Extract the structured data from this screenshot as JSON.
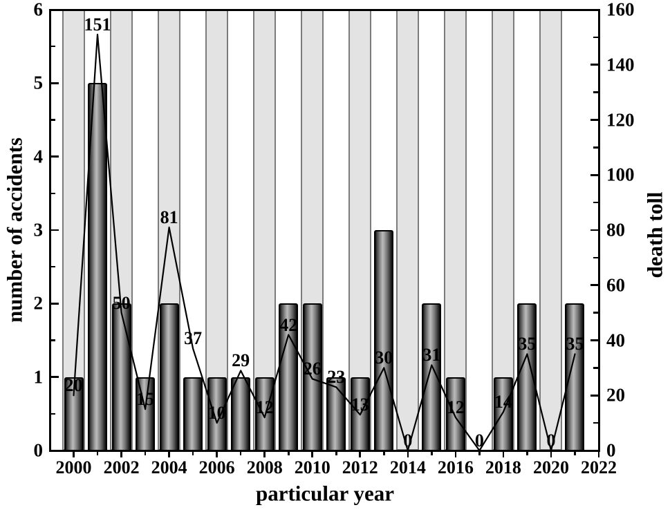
{
  "chart_data": {
    "type": "bar+line combo",
    "x": [
      2000,
      2001,
      2002,
      2003,
      2004,
      2005,
      2006,
      2007,
      2008,
      2009,
      2010,
      2011,
      2012,
      2013,
      2014,
      2015,
      2016,
      2017,
      2018,
      2019,
      2020,
      2021
    ],
    "series": [
      {
        "name": "number of accidents",
        "type": "bar",
        "axis": "left",
        "values": [
          1,
          5,
          2,
          1,
          2,
          1,
          1,
          1,
          1,
          2,
          2,
          1,
          1,
          3,
          0,
          2,
          1,
          0,
          1,
          2,
          0,
          2
        ]
      },
      {
        "name": "death toll",
        "type": "line",
        "axis": "right",
        "data_labels_shown": true,
        "values": [
          20,
          151,
          50,
          15,
          81,
          37,
          10,
          29,
          12,
          42,
          26,
          23,
          13,
          30,
          0,
          31,
          12,
          0,
          14,
          35,
          0,
          35
        ]
      }
    ],
    "x_axis": {
      "label": "particular year",
      "range": [
        1999,
        2022
      ],
      "major_ticks": [
        2000,
        2002,
        2004,
        2006,
        2008,
        2010,
        2012,
        2014,
        2016,
        2018,
        2020,
        2022
      ],
      "minor_ticks": [
        2001,
        2003,
        2005,
        2007,
        2009,
        2011,
        2013,
        2015,
        2017,
        2019,
        2021
      ]
    },
    "left_axis": {
      "label": "number of accidents",
      "range": [
        0,
        6
      ],
      "major_step": 1,
      "minor_step": 0.5
    },
    "right_axis": {
      "label": "death toll",
      "range": [
        0,
        160
      ],
      "major_step": 20,
      "minor_step": 10
    },
    "background_bands": {
      "years": [
        2000,
        2002,
        2004,
        2006,
        2008,
        2010,
        2012,
        2014,
        2016,
        2018,
        2020
      ],
      "fill": "#e3e3e3",
      "border": "#7b7b7b"
    },
    "colors": {
      "bar_dark": "#0d0d0d",
      "bar_light": "#bcbcbc",
      "bar_outline": "#000000",
      "line": "#000000",
      "frame": "#000000",
      "text": "#000000",
      "background": "#ffffff"
    },
    "legend": "none",
    "grid": "off"
  }
}
